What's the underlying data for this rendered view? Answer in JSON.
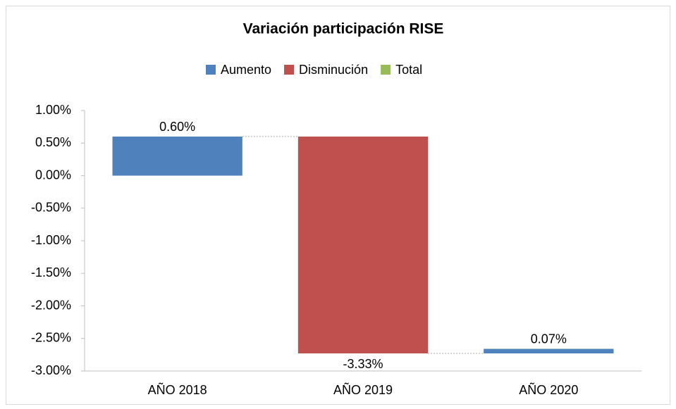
{
  "chart_data": {
    "type": "waterfall",
    "title": "Variación participación RISE",
    "legend_items": [
      {
        "name": "Aumento",
        "color": "#4f81bd"
      },
      {
        "name": "Disminución",
        "color": "#c0504d"
      },
      {
        "name": "Total",
        "color": "#9bbb59"
      }
    ],
    "categories": [
      "AÑO 2018",
      "AÑO 2019",
      "AÑO 2020"
    ],
    "values": [
      0.6,
      -3.33,
      0.07
    ],
    "value_labels": [
      "0.60%",
      "-3.33%",
      "0.07%"
    ],
    "ylim": [
      -3,
      1
    ],
    "yticks": [
      {
        "value": 1,
        "label": "1.00%"
      },
      {
        "value": 0.5,
        "label": "0.50%"
      },
      {
        "value": 0,
        "label": "0.00%"
      },
      {
        "value": -0.5,
        "label": "-0.50%"
      },
      {
        "value": -1,
        "label": "-1.00%"
      },
      {
        "value": -1.5,
        "label": "-1.50%"
      },
      {
        "value": -2,
        "label": "-2.00%"
      },
      {
        "value": -2.5,
        "label": "-2.50%"
      },
      {
        "value": -3,
        "label": "-3.00%"
      }
    ],
    "legend_position": "top",
    "grid": false
  }
}
